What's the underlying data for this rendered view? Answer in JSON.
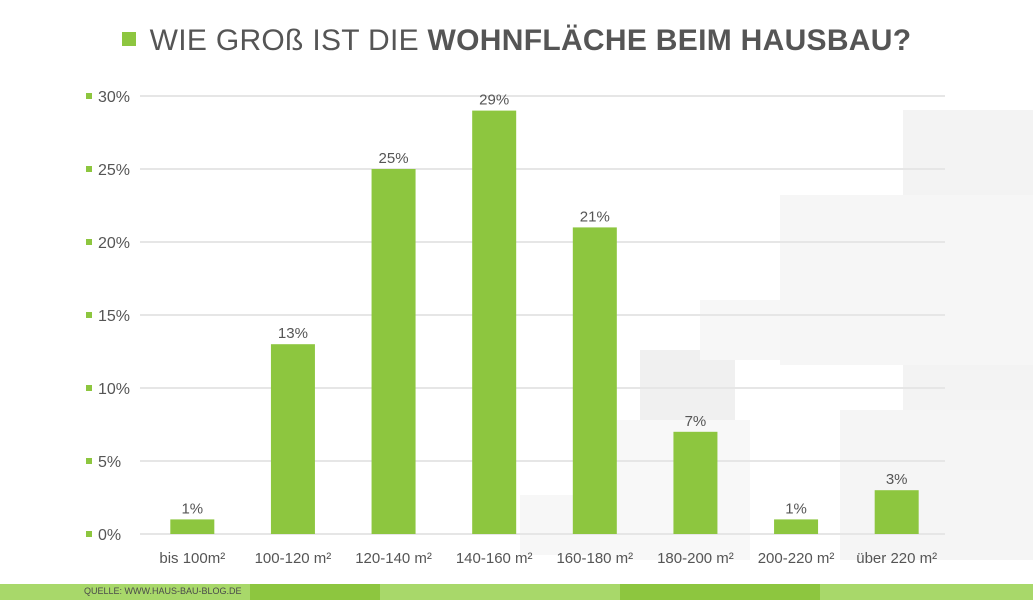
{
  "title": {
    "normal": "WIE GROß IST DIE",
    "bold": "WOHNFLÄCHE BEIM HAUSBAU?"
  },
  "source": "QUELLE: WWW.HAUS-BAU-BLOG.DE",
  "colors": {
    "accent": "#8dc63f",
    "text": "#555555",
    "grid": "#e6e6e6",
    "footer_light": "#a8d86a",
    "footer_dark": "#8dc63f"
  },
  "chart_data": {
    "type": "bar",
    "categories": [
      "bis 100m²",
      "100-120 m²",
      "120-140 m²",
      "140-160 m²",
      "160-180 m²",
      "180-200 m²",
      "200-220 m²",
      "über 220 m²"
    ],
    "values": [
      1,
      13,
      25,
      29,
      21,
      7,
      1,
      3
    ],
    "value_labels": [
      "1%",
      "13%",
      "25%",
      "29%",
      "21%",
      "7%",
      "1%",
      "3%"
    ],
    "y_ticks": [
      0,
      5,
      10,
      15,
      20,
      25,
      30
    ],
    "y_tick_labels": [
      "0%",
      "5%",
      "10%",
      "15%",
      "20%",
      "25%",
      "30%"
    ],
    "ylim": [
      0,
      30
    ],
    "grid": true
  }
}
